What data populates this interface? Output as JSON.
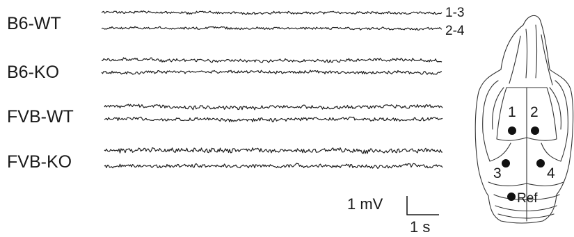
{
  "groups": [
    {
      "label": "B6-WT"
    },
    {
      "label": "B6-KO"
    },
    {
      "label": "FVB-WT"
    },
    {
      "label": "FVB-KO"
    }
  ],
  "channels": [
    "1-3",
    "2-4"
  ],
  "scale_bar": {
    "voltage": "1 mV",
    "time": "1 s"
  },
  "electrodes": {
    "e1": "1",
    "e2": "2",
    "e3": "3",
    "e4": "4",
    "ref": "Ref"
  }
}
